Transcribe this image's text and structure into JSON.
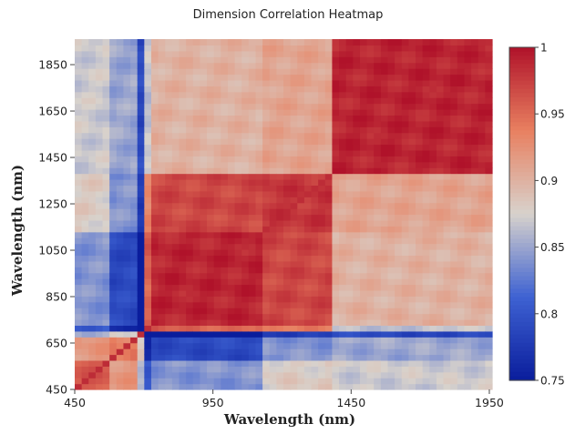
{
  "chart_data": {
    "type": "heatmap",
    "title": "Dimension Correlation Heatmap",
    "xlabel": "Wavelength (nm)",
    "ylabel": "Wavelength (nm)",
    "xlim": [
      450,
      1960
    ],
    "ylim": [
      450,
      1960
    ],
    "x_ticks": [
      450,
      950,
      1450,
      1950
    ],
    "y_ticks": [
      450,
      650,
      850,
      1050,
      1250,
      1450,
      1650,
      1850
    ],
    "colorscale": "RdBu reversed (blue to red)",
    "zlim": [
      0.75,
      1
    ],
    "colorbar_ticks": [
      1,
      0.95,
      0.9,
      0.85,
      0.8,
      0.75
    ],
    "colors": {
      "low": "#0a1d9c",
      "mid": "#d8d2cc",
      "high": "#b0122a"
    },
    "grid": false,
    "block_breaks_nm": [
      450,
      570,
      690,
      1120,
      1380,
      1960
    ],
    "block_correlation_matrix": [
      [
        0.96,
        0.92,
        0.84,
        0.88,
        0.87
      ],
      [
        0.92,
        0.94,
        0.79,
        0.84,
        0.85
      ],
      [
        0.84,
        0.79,
        0.99,
        0.97,
        0.9
      ],
      [
        0.88,
        0.84,
        0.97,
        0.98,
        0.91
      ],
      [
        0.87,
        0.85,
        0.9,
        0.91,
        0.99
      ]
    ]
  }
}
